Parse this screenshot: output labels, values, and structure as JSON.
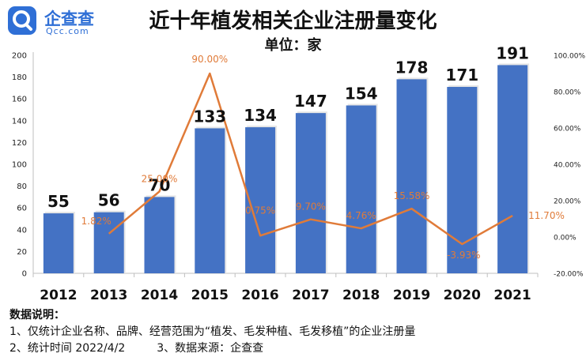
{
  "logo": {
    "name": "企查查",
    "domain": "Qcc.com"
  },
  "chart_data": {
    "type": "bar",
    "title": "近十年植发相关企业注册量变化",
    "subtitle": "单位：家",
    "categories": [
      "2012",
      "2013",
      "2014",
      "2015",
      "2016",
      "2017",
      "2018",
      "2019",
      "2020",
      "2021"
    ],
    "series": [
      {
        "type": "bar",
        "values": [
          55,
          56,
          70,
          133,
          134,
          147,
          154,
          178,
          171,
          191
        ],
        "color": "#4472c4"
      },
      {
        "type": "line",
        "axis": "right",
        "values": [
          null,
          1.82,
          25.0,
          90.0,
          0.75,
          9.7,
          4.76,
          15.58,
          -3.93,
          11.7
        ],
        "labels": [
          "",
          "1.82%",
          "25.00%",
          "90.00%",
          "0.75%",
          "9.70%",
          "4.76%",
          "15.58%",
          "-3.93%",
          "11.70%"
        ],
        "color": "#e07b39"
      }
    ],
    "y_left": {
      "ylim": [
        0,
        200
      ],
      "ticks": [
        "0",
        "20",
        "40",
        "60",
        "80",
        "100",
        "120",
        "140",
        "160",
        "180",
        "200"
      ]
    },
    "y_right": {
      "ylim": [
        -20,
        100
      ],
      "ticks": [
        "-20.00%",
        "0.00%",
        "20.00%",
        "40.00%",
        "60.00%",
        "80.00%",
        "100.00%"
      ]
    },
    "grid": false
  },
  "footer": {
    "heading": "数据说明：",
    "note1": "1、仅统计企业名称、品牌、经营范围为“植发、毛发种植、毛发移植”的企业注册量",
    "note2": "2、统计时间 2022/4/2",
    "note3": "3、数据来源：企查查"
  }
}
